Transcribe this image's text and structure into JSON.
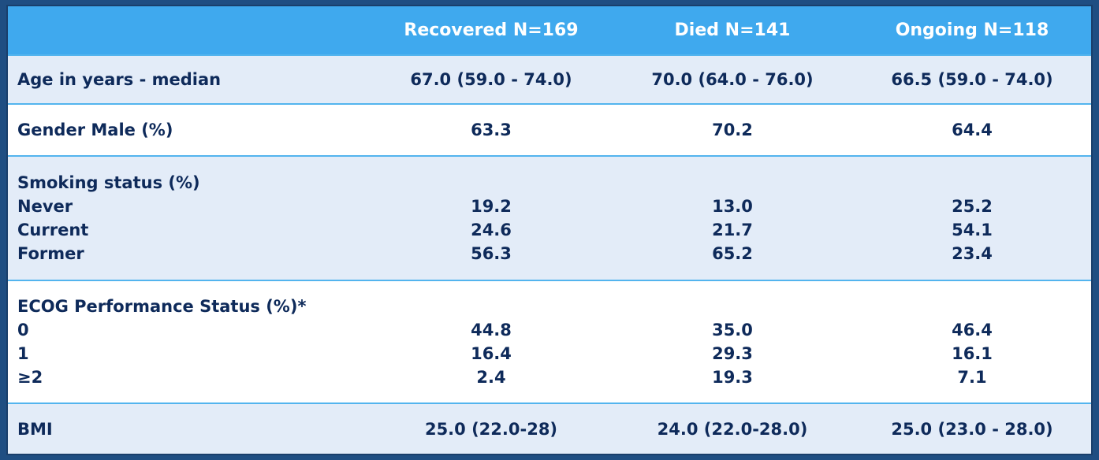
{
  "header": {
    "blank": "",
    "recovered": "Recovered N=169",
    "died": "Died N=141",
    "ongoing": "Ongoing N=118"
  },
  "rows": {
    "age": {
      "label": "Age in years - median",
      "recovered": "67.0 (59.0 - 74.0)",
      "died": "70.0 (64.0 - 76.0)",
      "ongoing": "66.5 (59.0 - 74.0)"
    },
    "gender": {
      "label": "Gender Male (%)",
      "recovered": "63.3",
      "died": "70.2",
      "ongoing": "64.4"
    },
    "smoking": {
      "label": "Smoking status (%)",
      "sub": [
        {
          "label": "Never",
          "recovered": "19.2",
          "died": "13.0",
          "ongoing": "25.2"
        },
        {
          "label": "Current",
          "recovered": "24.6",
          "died": "21.7",
          "ongoing": "54.1"
        },
        {
          "label": "Former",
          "recovered": "56.3",
          "died": "65.2",
          "ongoing": "23.4"
        }
      ]
    },
    "ecog": {
      "label": "ECOG Performance Status (%)*",
      "sub": [
        {
          "label": "0",
          "recovered": "44.8",
          "died": "35.0",
          "ongoing": "46.4"
        },
        {
          "label": "1",
          "recovered": "16.4",
          "died": "29.3",
          "ongoing": "16.1"
        },
        {
          "label": "≥2",
          "recovered": "2.4",
          "died": "19.3",
          "ongoing": "7.1"
        }
      ]
    },
    "bmi": {
      "label": "BMI",
      "recovered": "25.0 (22.0-28)",
      "died": "24.0 (22.0-28.0)",
      "ongoing": "25.0 (23.0 - 28.0)"
    }
  }
}
